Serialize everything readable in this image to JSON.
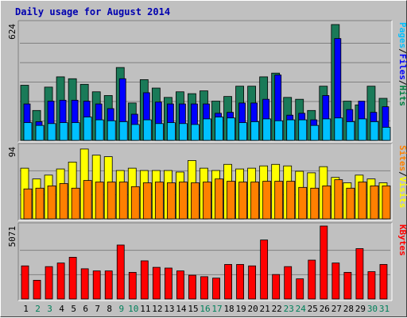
{
  "chart_data": {
    "type": "bar",
    "title": "Daily usage for August 2014",
    "categories": [
      "1",
      "2",
      "3",
      "4",
      "5",
      "6",
      "7",
      "8",
      "9",
      "10",
      "11",
      "12",
      "13",
      "14",
      "15",
      "16",
      "17",
      "18",
      "19",
      "20",
      "21",
      "22",
      "23",
      "24",
      "25",
      "26",
      "27",
      "28",
      "29",
      "30",
      "31"
    ],
    "weekend_days": [
      "2",
      "3",
      "9",
      "10",
      "16",
      "17",
      "23",
      "24",
      "30",
      "31"
    ],
    "panels": [
      {
        "name": "hits-files-pages",
        "scale_max_label": "624",
        "ymax": 624,
        "grid": true,
        "legend_labels": [
          "Pages",
          "/",
          "Files",
          "/",
          "Hits"
        ],
        "legend_colors": [
          "#00c0ff",
          "#000000",
          "#0000ff",
          "#000000",
          "#008040"
        ],
        "series": [
          {
            "name": "Hits",
            "color": "#1a7a58",
            "values": [
              295,
              160,
              285,
              340,
              330,
              300,
              260,
              240,
              390,
              200,
              325,
              280,
              230,
              260,
              250,
              265,
              210,
              235,
              290,
              290,
              340,
              360,
              230,
              220,
              160,
              290,
              620,
              210,
              190,
              290,
              225
            ]
          },
          {
            "name": "Files",
            "color": "#0000ff",
            "values": [
              195,
              100,
              210,
              215,
              215,
              210,
              195,
              170,
              330,
              140,
              255,
              205,
              195,
              195,
              195,
              195,
              145,
              150,
              200,
              200,
              220,
              350,
              135,
              145,
              110,
              240,
              545,
              165,
              210,
              150,
              180
            ]
          },
          {
            "name": "Pages",
            "color": "#00c0ff",
            "values": [
              95,
              80,
              90,
              95,
              95,
              125,
              110,
              105,
              100,
              85,
              110,
              90,
              95,
              90,
              85,
              115,
              125,
              120,
              95,
              100,
              115,
              105,
              110,
              110,
              80,
              115,
              120,
              100,
              115,
              100,
              70
            ]
          }
        ]
      },
      {
        "name": "visits-sites",
        "scale_max_label": "94",
        "ymax": 94,
        "grid": true,
        "legend_labels": [
          "Sites",
          "/",
          "Visits"
        ],
        "legend_colors": [
          "#ff8000",
          "#000000",
          "#ffff00"
        ],
        "series": [
          {
            "name": "Visits",
            "color": "#ffff00",
            "values": [
              66,
              52,
              57,
              65,
              74,
              91,
              83,
              81,
              63,
              66,
              63,
              63,
              63,
              61,
              76,
              66,
              63,
              71,
              65,
              66,
              69,
              71,
              69,
              62,
              60,
              68,
              54,
              47,
              57,
              52,
              47
            ]
          },
          {
            "name": "Sites",
            "color": "#ff8000",
            "values": [
              39,
              40,
              43,
              46,
              40,
              50,
              48,
              48,
              48,
              42,
              47,
              48,
              47,
              48,
              47,
              48,
              52,
              49,
              48,
              48,
              49,
              49,
              49,
              41,
              40,
              43,
              51,
              40,
              48,
              43,
              43
            ]
          }
        ]
      },
      {
        "name": "kbytes",
        "scale_max_label": "5071",
        "ymax": 5071,
        "grid": true,
        "legend_labels": [
          "KBytes"
        ],
        "legend_colors": [
          "#ff0000"
        ],
        "series": [
          {
            "name": "KBytes",
            "color": "#ff0000",
            "values": [
              2300,
              1300,
              2250,
              2500,
              2900,
              2100,
              1950,
              1950,
              3750,
              1850,
              2650,
              2200,
              2150,
              1950,
              1650,
              1550,
              1450,
              2400,
              2400,
              2300,
              4100,
              1700,
              2250,
              1400,
              2700,
              5071,
              2500,
              1850,
              3500,
              1900,
              2400
            ]
          }
        ]
      }
    ]
  }
}
